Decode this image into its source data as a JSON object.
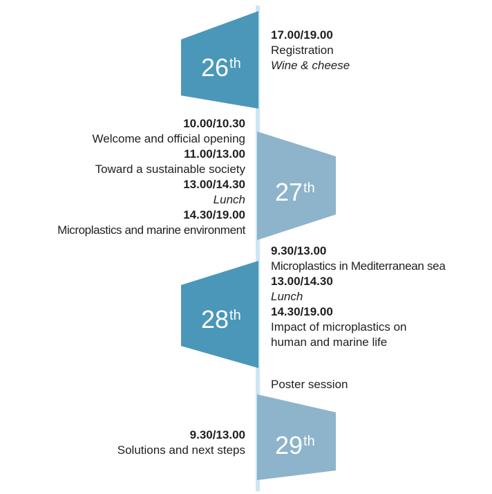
{
  "colors": {
    "axis": "#cde6f2",
    "dark_shape": "#4a97b9",
    "light_shape": "#8db4ca"
  },
  "days": [
    {
      "number": "26",
      "suffix": "th"
    },
    {
      "number": "27",
      "suffix": "th"
    },
    {
      "number": "28",
      "suffix": "th"
    },
    {
      "number": "29",
      "suffix": "th"
    }
  ],
  "schedule": {
    "day26": [
      {
        "text": "17.00/19.00",
        "style": "time"
      },
      {
        "text": "Registration",
        "style": "plain"
      },
      {
        "text": "Wine & cheese",
        "style": "italic"
      }
    ],
    "day27": [
      {
        "text": "10.00/10.30",
        "style": "time"
      },
      {
        "text": "Welcome and official opening",
        "style": "plain"
      },
      {
        "text": "11.00/13.00",
        "style": "time"
      },
      {
        "text": "Toward a sustainable society",
        "style": "plain"
      },
      {
        "text": "13.00/14.30",
        "style": "time"
      },
      {
        "text": "Lunch",
        "style": "italic"
      },
      {
        "text": "14.30/19.00",
        "style": "time"
      },
      {
        "text": "Microplastics and marine environment",
        "style": "plain"
      }
    ],
    "day28": [
      {
        "text": "9.30/13.00",
        "style": "time"
      },
      {
        "text": "Microplastics in Mediterranean sea",
        "style": "plain"
      },
      {
        "text": "13.00/14.30",
        "style": "time"
      },
      {
        "text": "Lunch",
        "style": "italic"
      },
      {
        "text": "14.30/19.00",
        "style": "time"
      },
      {
        "text": "Impact of microplastics on",
        "style": "plain"
      },
      {
        "text": "human and marine life",
        "style": "plain"
      }
    ],
    "poster": {
      "text": "Poster session",
      "style": "plain"
    },
    "day29": [
      {
        "text": "9.30/13.00",
        "style": "time"
      },
      {
        "text": "Solutions and next steps",
        "style": "plain"
      }
    ]
  }
}
